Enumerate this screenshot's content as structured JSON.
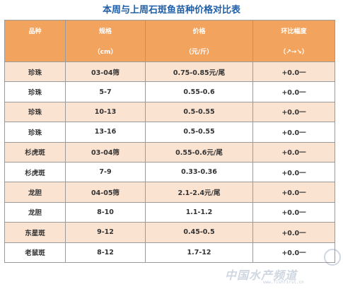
{
  "title": "本周与上周石斑鱼苗种价格对比表",
  "header": {
    "row1": [
      "品种",
      "规格",
      "价格",
      "环比幅度"
    ],
    "row2": [
      "",
      "（cm）",
      "（元/斤）",
      "（↗→↘）"
    ]
  },
  "rows": [
    {
      "name": "珍珠",
      "spec": "03-04筛",
      "price": "0.75-0.85元/尾",
      "change": "+0.0一"
    },
    {
      "name": "珍珠",
      "spec": "5-7",
      "price": "0.55-0.6",
      "change": "+0.0一"
    },
    {
      "name": "珍珠",
      "spec": "10-13",
      "price": "0.5-0.55",
      "change": "+0.0一"
    },
    {
      "name": "珍珠",
      "spec": "13-16",
      "price": "0.5-0.55",
      "change": "+0.0一"
    },
    {
      "name": "杉虎斑",
      "spec": "03-04筛",
      "price": "0.55-0.6元/尾",
      "change": "+0.0一"
    },
    {
      "name": "杉虎斑",
      "spec": "7-9",
      "price": "0.33-0.36",
      "change": "+0.0一"
    },
    {
      "name": "龙胆",
      "spec": "04-05筛",
      "price": "2.1-2.4元/尾",
      "change": "+0.0一"
    },
    {
      "name": "龙胆",
      "spec": "8-10",
      "price": "1.1-1.2",
      "change": "+0.0一"
    },
    {
      "name": "东星斑",
      "spec": "9-12",
      "price": "0.45-0.5",
      "change": "+0.0一"
    },
    {
      "name": "老鼠斑",
      "spec": "8-12",
      "price": "1.7-12",
      "change": "+0.0一"
    }
  ],
  "watermark": {
    "text": "中国水产频道",
    "url": "www.fishfirst.cn"
  }
}
